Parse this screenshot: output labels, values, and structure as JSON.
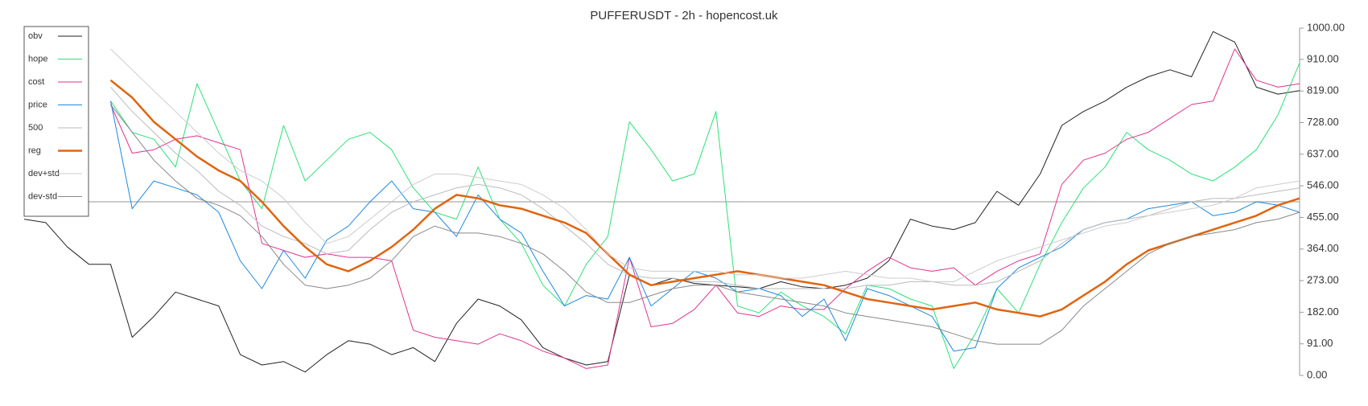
{
  "chart_data": {
    "type": "line",
    "title": "PUFFERUSDT - 2h - hopencost.uk",
    "ylim": [
      0,
      1000
    ],
    "yticks": [
      {
        "value": 0,
        "label": "0.00"
      },
      {
        "value": 91,
        "label": "91.00"
      },
      {
        "value": 182,
        "label": "182.00"
      },
      {
        "value": 273,
        "label": "273.00"
      },
      {
        "value": 364,
        "label": "364.00"
      },
      {
        "value": 455,
        "label": "455.00"
      },
      {
        "value": 546,
        "label": "546.00"
      },
      {
        "value": 637,
        "label": "637.00"
      },
      {
        "value": 728,
        "label": "728.00"
      },
      {
        "value": 819,
        "label": "819.00"
      },
      {
        "value": 910,
        "label": "910.00"
      },
      {
        "value": 1000,
        "label": "1000.00"
      }
    ],
    "reference_line": 500,
    "legend_position": "upper left",
    "series": [
      {
        "name": "obv",
        "color": "#222222",
        "width": 1,
        "values": [
          450,
          440,
          370,
          320,
          320,
          110,
          170,
          240,
          220,
          200,
          60,
          30,
          40,
          10,
          60,
          100,
          90,
          60,
          80,
          40,
          150,
          220,
          200,
          160,
          80,
          50,
          30,
          40,
          290,
          260,
          280,
          265,
          260,
          255,
          250,
          270,
          255,
          250,
          260,
          280,
          330,
          450,
          430,
          420,
          440,
          530,
          490,
          580,
          720,
          760,
          790,
          830,
          860,
          880,
          860,
          990,
          960,
          830,
          810,
          820
        ]
      },
      {
        "name": "hope",
        "color": "#2ee07a",
        "width": 1,
        "values": [
          null,
          null,
          null,
          null,
          790,
          700,
          680,
          600,
          840,
          700,
          560,
          480,
          720,
          560,
          620,
          680,
          700,
          650,
          540,
          470,
          450,
          600,
          450,
          380,
          260,
          200,
          320,
          400,
          730,
          650,
          560,
          580,
          760,
          200,
          180,
          240,
          200,
          170,
          120,
          260,
          250,
          220,
          200,
          20,
          120,
          250,
          180,
          320,
          440,
          540,
          600,
          700,
          650,
          620,
          580,
          560,
          600,
          650,
          750,
          900
        ]
      },
      {
        "name": "cost",
        "color": "#e0338f",
        "width": 1,
        "values": [
          null,
          null,
          null,
          null,
          780,
          640,
          650,
          680,
          690,
          670,
          650,
          380,
          360,
          340,
          350,
          340,
          340,
          330,
          130,
          110,
          100,
          90,
          120,
          100,
          70,
          50,
          20,
          30,
          340,
          140,
          150,
          190,
          260,
          180,
          170,
          200,
          190,
          190,
          250,
          300,
          340,
          310,
          300,
          310,
          260,
          300,
          330,
          350,
          550,
          620,
          640,
          680,
          700,
          740,
          780,
          790,
          940,
          850,
          830,
          840
        ]
      },
      {
        "name": "price",
        "color": "#1f88e0",
        "width": 1,
        "values": [
          null,
          null,
          null,
          null,
          790,
          480,
          560,
          540,
          520,
          470,
          330,
          250,
          360,
          280,
          390,
          430,
          500,
          560,
          480,
          470,
          400,
          520,
          450,
          410,
          300,
          200,
          230,
          220,
          340,
          200,
          250,
          300,
          280,
          240,
          250,
          230,
          170,
          220,
          100,
          250,
          230,
          200,
          170,
          70,
          80,
          250,
          310,
          340,
          370,
          420,
          440,
          450,
          480,
          490,
          500,
          460,
          470,
          500,
          490,
          470
        ]
      },
      {
        "name": "500",
        "color": "#bbbbbb",
        "width": 1,
        "values": [
          null,
          null,
          null,
          null,
          830,
          760,
          700,
          640,
          590,
          530,
          490,
          430,
          400,
          380,
          350,
          360,
          420,
          470,
          500,
          520,
          540,
          550,
          540,
          520,
          480,
          430,
          380,
          320,
          290,
          280,
          280,
          270,
          270,
          260,
          250,
          250,
          250,
          250,
          250,
          260,
          260,
          270,
          270,
          260,
          260,
          270,
          300,
          330,
          380,
          420,
          440,
          450,
          460,
          480,
          500,
          510,
          510,
          520,
          530,
          540
        ]
      },
      {
        "name": "reg",
        "color": "#e06410",
        "width": 2.5,
        "values": [
          null,
          null,
          null,
          null,
          850,
          800,
          730,
          680,
          630,
          590,
          560,
          500,
          430,
          370,
          320,
          300,
          330,
          370,
          420,
          480,
          520,
          510,
          490,
          480,
          460,
          440,
          410,
          350,
          290,
          260,
          270,
          280,
          290,
          300,
          290,
          280,
          270,
          260,
          240,
          220,
          210,
          200,
          190,
          200,
          210,
          190,
          180,
          170,
          190,
          230,
          270,
          320,
          360,
          380,
          400,
          420,
          440,
          460,
          490,
          510
        ]
      },
      {
        "name": "dev+std",
        "color": "#cccccc",
        "width": 1,
        "values": [
          null,
          null,
          null,
          null,
          940,
          880,
          820,
          760,
          700,
          640,
          590,
          560,
          510,
          440,
          380,
          400,
          450,
          500,
          550,
          580,
          580,
          570,
          560,
          550,
          520,
          480,
          420,
          350,
          310,
          300,
          300,
          300,
          300,
          290,
          290,
          280,
          280,
          290,
          300,
          290,
          280,
          280,
          270,
          270,
          300,
          330,
          350,
          370,
          390,
          410,
          430,
          440,
          460,
          470,
          480,
          490,
          510,
          540,
          550,
          560
        ]
      },
      {
        "name": "dev-std",
        "color": "#888888",
        "width": 1,
        "values": [
          null,
          null,
          null,
          null,
          780,
          700,
          620,
          560,
          510,
          490,
          460,
          400,
          320,
          260,
          250,
          260,
          280,
          330,
          400,
          430,
          410,
          410,
          400,
          380,
          350,
          300,
          240,
          210,
          210,
          230,
          250,
          260,
          260,
          240,
          230,
          220,
          210,
          200,
          180,
          170,
          160,
          150,
          140,
          120,
          100,
          90,
          90,
          90,
          130,
          200,
          250,
          300,
          350,
          380,
          400,
          410,
          420,
          440,
          450,
          470
        ]
      }
    ]
  }
}
